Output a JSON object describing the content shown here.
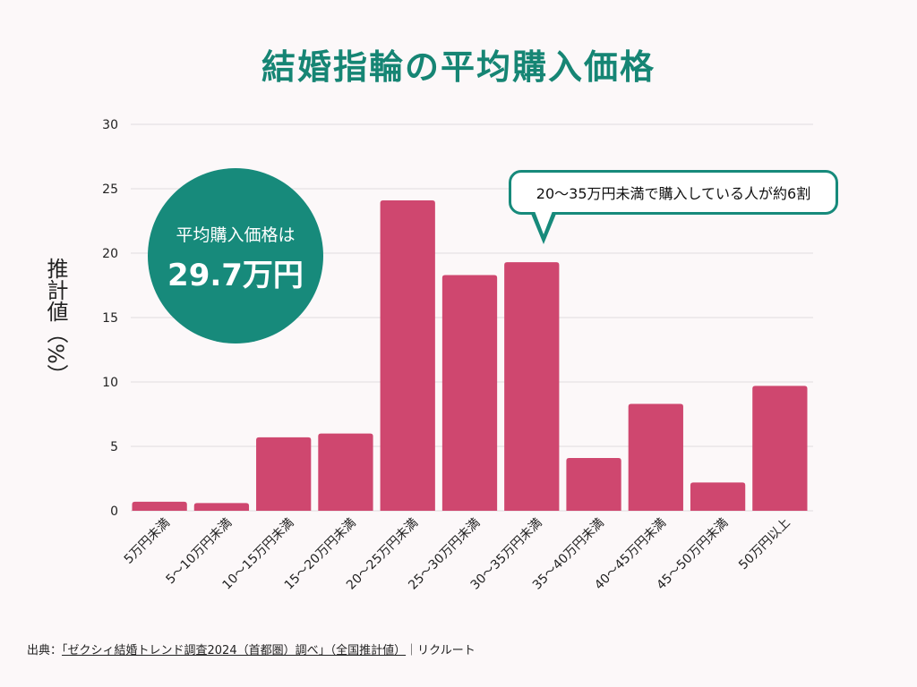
{
  "title": "結婚指輪の平均購入価格",
  "ylabel": "推計値（%）",
  "bubble": {
    "line1": "平均購入価格は",
    "line2": "29.7万円"
  },
  "callout": "20〜35万円未満で購入している人が約6割",
  "source": {
    "prefix": "出典：",
    "link": "「ゼクシィ結婚トレンド調査2024（首都圏）調べ」（全国推計値）",
    "suffix": "｜リクルート"
  },
  "colors": {
    "bar": "#cf476f",
    "accent": "#178a7b",
    "title": "#168574"
  },
  "chart_data": {
    "type": "bar",
    "title": "結婚指輪の平均購入価格",
    "xlabel": "",
    "ylabel": "推計値（%）",
    "ylim": [
      0,
      30
    ],
    "yticks": [
      0,
      5,
      10,
      15,
      20,
      25,
      30
    ],
    "grid": true,
    "categories": [
      "5万円未満",
      "5～10万円未満",
      "10～15万円未満",
      "15～20万円未満",
      "20～25万円未満",
      "25～30万円未満",
      "30～35万円未満",
      "35～40万円未満",
      "40～45万円未満",
      "45～50万円未満",
      "50万円以上"
    ],
    "values": [
      0.7,
      0.6,
      5.7,
      6.0,
      24.1,
      18.3,
      19.3,
      4.1,
      8.3,
      2.2,
      9.7
    ]
  }
}
